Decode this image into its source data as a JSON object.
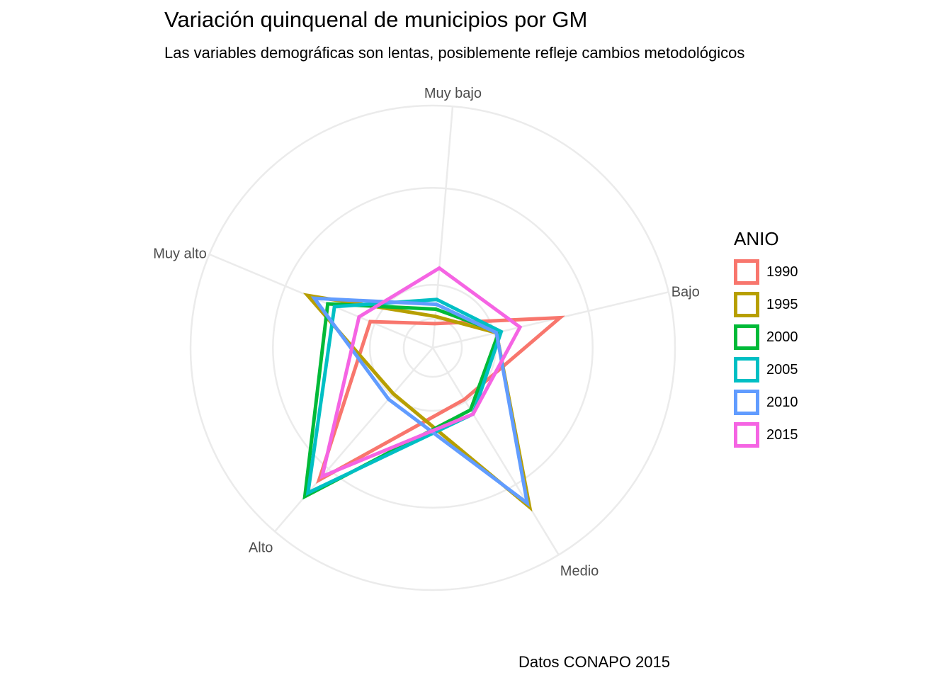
{
  "title": "Variación quinquenal de municipios por GM",
  "subtitle": "Las variables demográficas son lentas, posiblemente refleje cambios metodológicos",
  "caption": "Datos CONAPO 2015",
  "chart_data": {
    "type": "radar",
    "categories": [
      "Bajo",
      "Muy bajo",
      "Muy alto",
      "Alto",
      "Medio"
    ],
    "rlim": [
      0,
      1
    ],
    "grid": true,
    "legend_title": "ANIO",
    "legend_position": "right",
    "series": [
      {
        "name": "1990",
        "color": "#F8766D",
        "values": [
          0.54,
          0.1,
          0.28,
          0.72,
          0.25
        ]
      },
      {
        "name": "1995",
        "color": "#B79F00",
        "values": [
          0.27,
          0.13,
          0.56,
          0.25,
          0.77
        ]
      },
      {
        "name": "2000",
        "color": "#00BA38",
        "values": [
          0.28,
          0.16,
          0.47,
          0.81,
          0.3
        ]
      },
      {
        "name": "2005",
        "color": "#00BFC4",
        "values": [
          0.29,
          0.2,
          0.44,
          0.79,
          0.32
        ]
      },
      {
        "name": "2010",
        "color": "#619CFF",
        "values": [
          0.27,
          0.18,
          0.53,
          0.28,
          0.75
        ]
      },
      {
        "name": "2015",
        "color": "#F564E3",
        "values": [
          0.37,
          0.33,
          0.33,
          0.7,
          0.32
        ]
      }
    ]
  }
}
